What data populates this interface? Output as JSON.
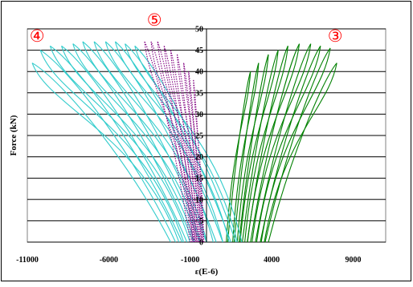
{
  "chart_data": {
    "type": "line",
    "title": "",
    "xlabel": "ε(E-6)",
    "ylabel": "Force (kN)",
    "xlim": [
      -11000,
      11000
    ],
    "ylim": [
      0,
      50
    ],
    "x_ticks": [
      "-11000",
      "-6000",
      "-1000",
      "4000",
      "9000"
    ],
    "x_tick_values": [
      -11000,
      -6000,
      -1000,
      4000,
      9000
    ],
    "y_ticks": [
      "0",
      "5",
      "10",
      "15",
      "20",
      "25",
      "30",
      "35",
      "40",
      "45",
      "50"
    ],
    "y_tick_values": [
      0,
      5,
      10,
      15,
      20,
      25,
      30,
      35,
      40,
      45,
      50
    ],
    "grid": "horizontal",
    "legend": "none",
    "annotations": [
      "④",
      "⑤",
      "③"
    ],
    "series": [
      {
        "label": "③",
        "color": "#008000",
        "style": "solid",
        "loops": [
          {
            "base": [
              1300,
              0
            ],
            "peak": [
              2700,
              40
            ]
          },
          {
            "base": [
              1700,
              0
            ],
            "peak": [
              3200,
              42
            ]
          },
          {
            "base": [
              2000,
              0
            ],
            "peak": [
              3800,
              44
            ]
          },
          {
            "base": [
              2200,
              0
            ],
            "peak": [
              4400,
              45
            ]
          },
          {
            "base": [
              2500,
              0
            ],
            "peak": [
              5000,
              46
            ]
          },
          {
            "base": [
              2700,
              0
            ],
            "peak": [
              5700,
              46.5
            ]
          },
          {
            "base": [
              3000,
              0
            ],
            "peak": [
              6400,
              46.5
            ]
          },
          {
            "base": [
              3300,
              0
            ],
            "peak": [
              7000,
              46
            ]
          },
          {
            "base": [
              3600,
              0
            ],
            "peak": [
              7600,
              45.5
            ]
          },
          {
            "base": [
              3800,
              0
            ],
            "peak": [
              8000,
              42
            ]
          }
        ]
      },
      {
        "label": "④",
        "color": "#33cccc",
        "style": "solid",
        "loops": [
          {
            "base": [
              1800,
              0
            ],
            "peak": [
              -4400,
              46
            ]
          },
          {
            "base": [
              1500,
              0
            ],
            "peak": [
              -5000,
              46.5
            ]
          },
          {
            "base": [
              1000,
              0
            ],
            "peak": [
              -5600,
              47
            ]
          },
          {
            "base": [
              600,
              0
            ],
            "peak": [
              -6200,
              47
            ]
          },
          {
            "base": [
              0,
              0
            ],
            "peak": [
              -6900,
              47
            ]
          },
          {
            "base": [
              -400,
              0
            ],
            "peak": [
              -7600,
              47
            ]
          },
          {
            "base": [
              -800,
              0
            ],
            "peak": [
              -8200,
              46.5
            ]
          },
          {
            "base": [
              -1200,
              0
            ],
            "peak": [
              -8900,
              46
            ]
          },
          {
            "base": [
              -1500,
              0
            ],
            "peak": [
              -9600,
              46
            ]
          },
          {
            "base": [
              -1900,
              0
            ],
            "peak": [
              -10200,
              45
            ]
          },
          {
            "base": [
              -2200,
              0
            ],
            "peak": [
              -10700,
              42
            ]
          }
        ]
      },
      {
        "label": "⑤",
        "color": "#800080",
        "style": "dotted",
        "loops": [
          {
            "base": [
              -200,
              0
            ],
            "peak": [
              -800,
              38
            ]
          },
          {
            "base": [
              -300,
              0
            ],
            "peak": [
              -1100,
              40
            ]
          },
          {
            "base": [
              -400,
              0
            ],
            "peak": [
              -1400,
              42
            ]
          },
          {
            "base": [
              -500,
              0
            ],
            "peak": [
              -1800,
              44
            ]
          },
          {
            "base": [
              -600,
              0
            ],
            "peak": [
              -2200,
              45
            ]
          },
          {
            "base": [
              -700,
              0
            ],
            "peak": [
              -2600,
              46
            ]
          },
          {
            "base": [
              -800,
              0
            ],
            "peak": [
              -3000,
              47
            ]
          },
          {
            "base": [
              -900,
              0
            ],
            "peak": [
              -3400,
              47
            ]
          },
          {
            "base": [
              -1000,
              0
            ],
            "peak": [
              -3800,
              47
            ]
          }
        ]
      }
    ]
  }
}
